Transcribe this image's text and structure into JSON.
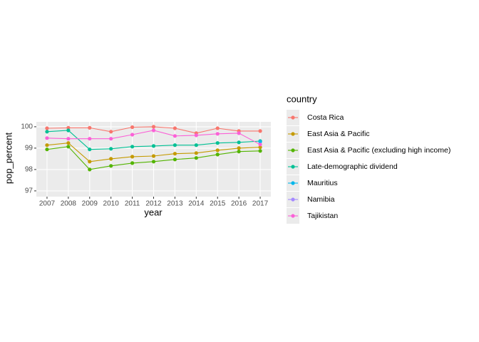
{
  "chart_data": {
    "type": "line",
    "x_label": "year",
    "y_label": "pop_percent",
    "legend_title": "country",
    "x": [
      2007,
      2008,
      2009,
      2010,
      2011,
      2012,
      2013,
      2014,
      2015,
      2016,
      2017
    ],
    "xlim": [
      2006.5,
      2017.5
    ],
    "xticks": [
      2007,
      2008,
      2009,
      2010,
      2011,
      2012,
      2013,
      2014,
      2015,
      2016,
      2017
    ],
    "ylim": [
      96.73,
      100.23
    ],
    "yticks": [
      97,
      98,
      99,
      100
    ],
    "grid": true,
    "legend": "right",
    "series": [
      {
        "name": "Costa Rica",
        "color": "#F8766D",
        "values": [
          99.93,
          99.95,
          99.95,
          99.77,
          99.98,
          100,
          99.93,
          99.7,
          99.93,
          99.8,
          99.8
        ]
      },
      {
        "name": "East Asia & Pacific",
        "color": "#C49A00",
        "values": [
          99.14,
          99.24,
          98.37,
          98.5,
          98.6,
          98.63,
          98.74,
          98.77,
          98.9,
          99.0,
          99.04
        ]
      },
      {
        "name": "East Asia & Pacific (excluding high income)",
        "color": "#53B400",
        "values": [
          98.94,
          99.07,
          98.0,
          98.17,
          98.3,
          98.37,
          98.47,
          98.54,
          98.7,
          98.84,
          98.87
        ]
      },
      {
        "name": "Late-demographic dividend",
        "color": "#00C094",
        "values": [
          99.77,
          99.83,
          98.94,
          98.97,
          99.07,
          99.1,
          99.14,
          99.14,
          99.24,
          99.27,
          99.33
        ]
      },
      {
        "name": "Mauritius",
        "color": "#00B6EB",
        "values": [
          null,
          null,
          null,
          null,
          null,
          null,
          null,
          null,
          null,
          null,
          99.3
        ]
      },
      {
        "name": "Namibia",
        "color": "#A58AFF",
        "values": [
          null,
          null,
          null,
          null,
          null,
          null,
          null,
          null,
          null,
          null,
          null
        ]
      },
      {
        "name": "Tajikistan",
        "color": "#FB61D7",
        "values": [
          99.47,
          99.44,
          99.44,
          99.44,
          99.63,
          99.83,
          99.57,
          99.6,
          99.67,
          99.7,
          99.17
        ]
      }
    ]
  }
}
